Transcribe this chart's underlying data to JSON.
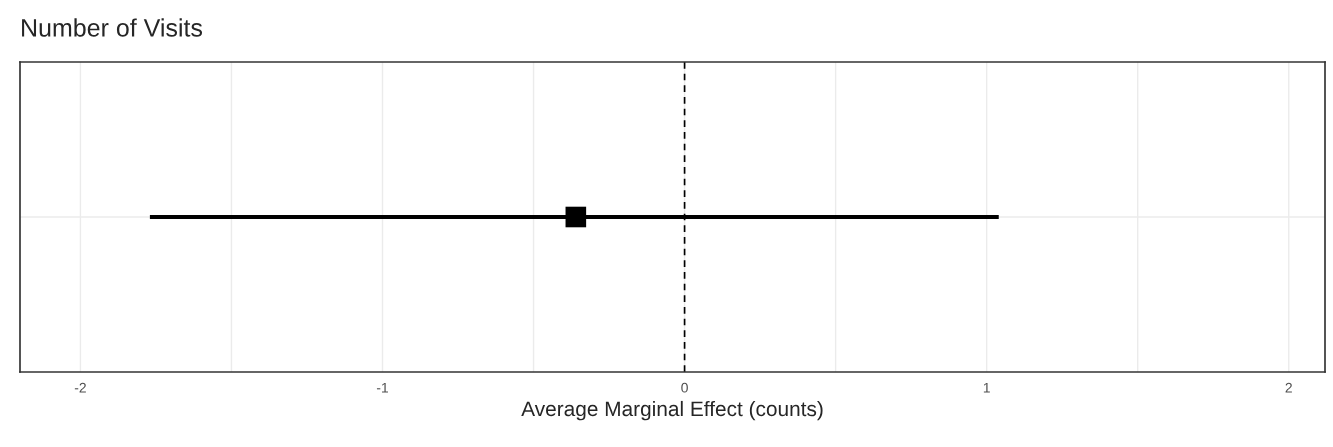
{
  "chart_data": {
    "type": "scatter",
    "title": "Number of Visits",
    "xlabel": "Average Marginal Effect (counts)",
    "orientation": "horizontal",
    "categories": [
      null
    ],
    "series": [
      {
        "color": "#000000",
        "values": [
          -0.36
        ],
        "errors": [
          [
            -1.77,
            1.04
          ]
        ]
      }
    ],
    "marker": "square",
    "xlim": [
      -2.2,
      2.12
    ],
    "xticks": [
      -2,
      {
        "value": -1.5,
        "label": null
      },
      -1,
      {
        "value": -0.5,
        "label": null
      },
      0,
      {
        "value": 0.5,
        "label": null
      },
      1,
      {
        "value": 1.5,
        "label": null
      },
      2
    ],
    "ref_lines": [
      {
        "axis": "x",
        "value": 0,
        "color": "#000000",
        "line_style": "dashed"
      }
    ],
    "grid": true,
    "legend": false
  }
}
